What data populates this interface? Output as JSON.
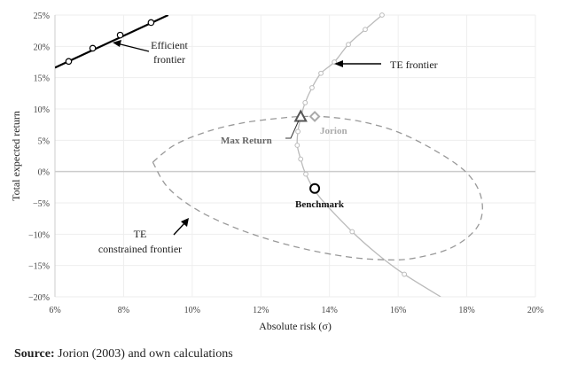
{
  "chart_data": {
    "type": "line",
    "xlabel": "Absolute risk (σ)",
    "ylabel": "Total expected return",
    "xlim": [
      6,
      20
    ],
    "ylim": [
      -20,
      25
    ],
    "x_ticks": [
      "6%",
      "8%",
      "10%",
      "12%",
      "14%",
      "16%",
      "18%",
      "20%"
    ],
    "y_ticks": [
      "25%",
      "20%",
      "15%",
      "10%",
      "5%",
      "0%",
      "-5%",
      "-10%",
      "-15%",
      "-20%"
    ],
    "grid": true,
    "series": [
      {
        "name": "Efficient frontier",
        "color": "#000000",
        "line": [
          [
            6,
            16.6
          ],
          [
            9.3,
            25
          ]
        ],
        "points": [
          [
            6.4,
            17.6
          ],
          [
            7.1,
            19.7
          ],
          [
            7.9,
            21.8
          ],
          [
            8.8,
            23.8
          ]
        ]
      },
      {
        "name": "TE frontier",
        "color": "#bbbbbb",
        "line": [
          [
            15.53,
            25
          ],
          [
            15.04,
            22.7
          ],
          [
            14.55,
            20.3
          ],
          [
            14.14,
            17.5
          ],
          [
            13.75,
            15.7
          ],
          [
            13.49,
            13.4
          ],
          [
            13.29,
            11.0
          ],
          [
            13.16,
            8.6
          ],
          [
            13.08,
            6.4
          ],
          [
            13.06,
            4.2
          ],
          [
            13.16,
            2.0
          ],
          [
            13.31,
            -0.4
          ],
          [
            13.7,
            -4.0
          ],
          [
            14.66,
            -9.6
          ],
          [
            15.4,
            -13.2
          ],
          [
            16.18,
            -16.4
          ],
          [
            17.24,
            -20
          ]
        ],
        "points": [
          [
            15.53,
            25
          ],
          [
            15.04,
            22.7
          ],
          [
            14.55,
            20.3
          ],
          [
            14.14,
            17.5
          ],
          [
            13.75,
            15.7
          ],
          [
            13.49,
            13.4
          ],
          [
            13.29,
            11.0
          ],
          [
            13.16,
            8.6
          ],
          [
            13.08,
            6.4
          ],
          [
            13.06,
            4.2
          ],
          [
            13.16,
            2.0
          ],
          [
            13.31,
            -0.4
          ],
          [
            14.66,
            -9.6
          ],
          [
            16.18,
            -16.4
          ]
        ]
      },
      {
        "name": "TE constrained frontier",
        "color": "#999999",
        "dashed": true,
        "line": [
          [
            8.85,
            1.5
          ],
          [
            9.5,
            4.3
          ],
          [
            10.5,
            6.5
          ],
          [
            11.5,
            7.8
          ],
          [
            12.5,
            8.5
          ],
          [
            13.2,
            8.8
          ],
          [
            14.0,
            8.7
          ],
          [
            15.0,
            7.9
          ],
          [
            16.0,
            6.3
          ],
          [
            17.0,
            3.6
          ],
          [
            17.9,
            0.3
          ],
          [
            18.35,
            -3.0
          ],
          [
            18.45,
            -6.6
          ],
          [
            18.2,
            -9.6
          ],
          [
            17.5,
            -12.3
          ],
          [
            16.5,
            -13.8
          ],
          [
            15.7,
            -14.1
          ],
          [
            14.5,
            -13.6
          ],
          [
            13.0,
            -12.0
          ],
          [
            11.5,
            -9.5
          ],
          [
            10.2,
            -6.3
          ],
          [
            9.3,
            -2.6
          ],
          [
            8.85,
            1.5
          ]
        ]
      }
    ],
    "markers": [
      {
        "name": "Max Return",
        "shape": "triangle",
        "x": 13.16,
        "y": 8.8,
        "color": "#555555"
      },
      {
        "name": "Jorion",
        "shape": "diamond",
        "x": 13.57,
        "y": 8.8,
        "color": "#aaaaaa"
      },
      {
        "name": "Benchmark",
        "shape": "circle",
        "x": 13.57,
        "y": -2.7,
        "color": "#000000"
      }
    ],
    "annotations": {
      "efficient_1": "Efficient",
      "efficient_2": "frontier",
      "te_frontier": "TE frontier",
      "constrained_1": "TE",
      "constrained_2": "constrained frontier",
      "max_return": "Max Return",
      "jorion": "Jorion",
      "benchmark": "Benchmark"
    }
  },
  "source": {
    "label": "Source:",
    "text": " Jorion (2003) and own calculations"
  }
}
